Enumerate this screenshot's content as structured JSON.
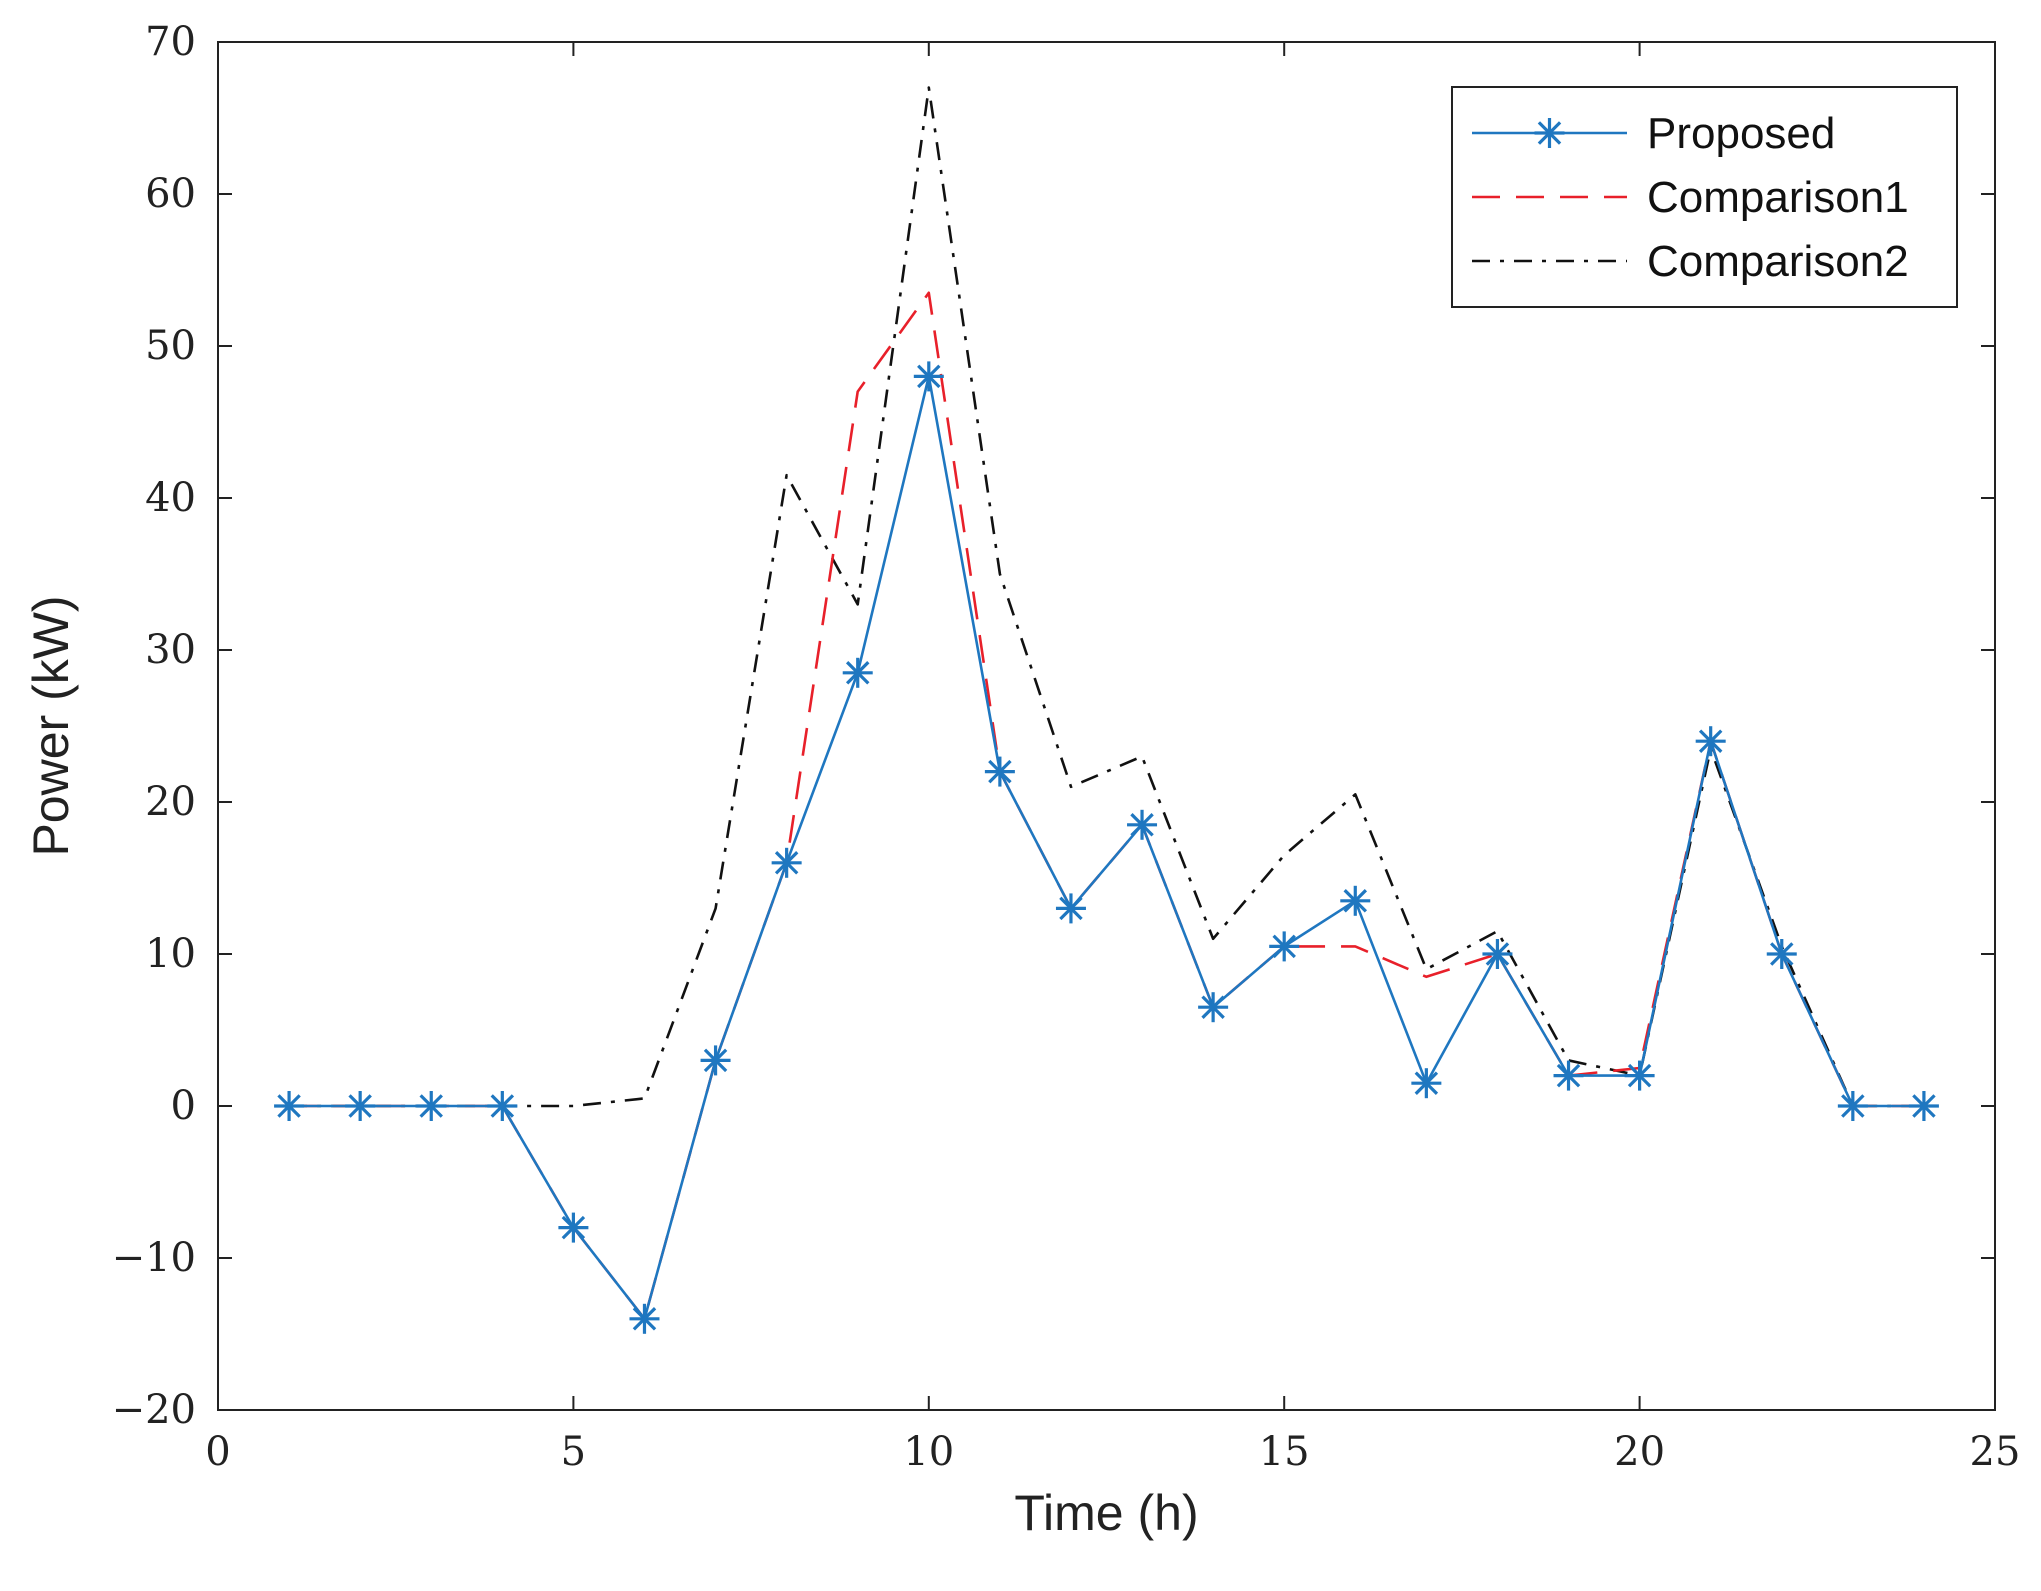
{
  "chart_data": {
    "type": "line",
    "title": "",
    "xlabel": "Time (h)",
    "ylabel": "Power (kW)",
    "xlim": [
      0,
      25
    ],
    "ylim": [
      -20,
      70
    ],
    "xticks": [
      0,
      5,
      10,
      15,
      20,
      25
    ],
    "yticks": [
      -20,
      -10,
      0,
      10,
      20,
      30,
      40,
      50,
      60,
      70
    ],
    "xtick_labels": [
      "0",
      "5",
      "10",
      "15",
      "20",
      "25"
    ],
    "ytick_labels": [
      "−20",
      "−10",
      "0",
      "10",
      "20",
      "30",
      "40",
      "50",
      "60",
      "70"
    ],
    "grid": false,
    "legend_position": "top-right",
    "x": [
      1,
      2,
      3,
      4,
      5,
      6,
      7,
      8,
      9,
      10,
      11,
      12,
      13,
      14,
      15,
      16,
      17,
      18,
      19,
      20,
      21,
      22,
      23,
      24
    ],
    "series": [
      {
        "name": "Proposed",
        "color": "#1f77c0",
        "style": "solid-star",
        "values": [
          0,
          0,
          0,
          0,
          -8,
          -14,
          3,
          16,
          28.5,
          48,
          22,
          13,
          18.5,
          6.5,
          10.5,
          13.5,
          1.5,
          10,
          2,
          2,
          24,
          10,
          0,
          0
        ]
      },
      {
        "name": "Comparison1",
        "color": "#e8202a",
        "style": "dashed",
        "values": [
          0,
          0,
          0,
          0,
          -8,
          -14,
          3,
          16,
          47,
          53.5,
          22,
          13,
          18.5,
          6.5,
          10.5,
          10.5,
          8.5,
          10,
          2,
          2.5,
          24,
          10,
          0,
          0
        ]
      },
      {
        "name": "Comparison2",
        "color": "#111111",
        "style": "dashdot",
        "values": [
          0,
          0,
          0,
          0,
          0,
          0.5,
          13,
          41.5,
          33,
          67,
          35,
          21,
          23,
          11,
          16.5,
          20.5,
          9,
          11.5,
          3,
          2,
          23.5,
          10.5,
          0,
          0
        ]
      }
    ]
  }
}
